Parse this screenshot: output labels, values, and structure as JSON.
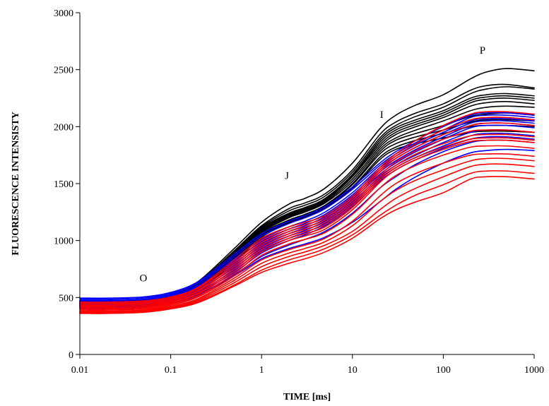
{
  "chart_data": {
    "type": "line",
    "title": "",
    "xlabel": "TIME [ms]",
    "ylabel": "FLUORESCENCE INTENSISTY",
    "x_scale": "log",
    "xlim": [
      0.01,
      1000
    ],
    "ylim": [
      0,
      3000
    ],
    "x_ticks": [
      0.01,
      0.1,
      1,
      10,
      100,
      1000
    ],
    "x_tick_labels": [
      "0.01",
      "0.1",
      "1",
      "10",
      "100",
      "1000"
    ],
    "y_ticks": [
      0,
      500,
      1000,
      1500,
      2000,
      2500,
      3000
    ],
    "y_tick_labels": [
      "0",
      "500",
      "1000",
      "1500",
      "2000",
      "2500",
      "3000"
    ],
    "grid": false,
    "legend": "none",
    "x": [
      0.01,
      0.02,
      0.05,
      0.1,
      0.2,
      0.5,
      1,
      2,
      3,
      5,
      10,
      20,
      30,
      50,
      100,
      200,
      300,
      500,
      1000
    ],
    "annotations": [
      {
        "text": "O",
        "x": 0.05,
        "y": 640
      },
      {
        "text": "J",
        "x": 1.9,
        "y": 1540
      },
      {
        "text": "I",
        "x": 21,
        "y": 2075
      },
      {
        "text": "P",
        "x": 270,
        "y": 2640
      }
    ],
    "series": [
      {
        "color": "#000000",
        "values": [
          470,
          470,
          480,
          530,
          640,
          930,
          1160,
          1320,
          1370,
          1460,
          1680,
          1980,
          2100,
          2190,
          2280,
          2420,
          2480,
          2510,
          2490
        ]
      },
      {
        "color": "#000000",
        "values": [
          465,
          465,
          475,
          520,
          630,
          910,
          1130,
          1280,
          1330,
          1410,
          1620,
          1930,
          2040,
          2120,
          2200,
          2320,
          2360,
          2370,
          2340
        ]
      },
      {
        "color": "#000000",
        "values": [
          460,
          460,
          470,
          515,
          625,
          900,
          1120,
          1260,
          1310,
          1390,
          1600,
          1900,
          2010,
          2090,
          2170,
          2290,
          2330,
          2350,
          2330
        ]
      },
      {
        "color": "#000000",
        "values": [
          455,
          455,
          465,
          510,
          615,
          890,
          1110,
          1240,
          1290,
          1370,
          1580,
          1880,
          1990,
          2060,
          2140,
          2250,
          2280,
          2290,
          2270
        ]
      },
      {
        "color": "#000000",
        "values": [
          450,
          450,
          460,
          505,
          610,
          880,
          1100,
          1230,
          1280,
          1360,
          1570,
          1860,
          1970,
          2040,
          2120,
          2230,
          2260,
          2270,
          2250
        ]
      },
      {
        "color": "#000000",
        "values": [
          445,
          445,
          455,
          500,
          600,
          870,
          1090,
          1220,
          1270,
          1350,
          1560,
          1840,
          1950,
          2020,
          2100,
          2210,
          2240,
          2250,
          2230
        ]
      },
      {
        "color": "#000000",
        "values": [
          440,
          440,
          450,
          495,
          595,
          860,
          1080,
          1210,
          1260,
          1340,
          1540,
          1820,
          1930,
          2000,
          2080,
          2180,
          2210,
          2220,
          2200
        ]
      },
      {
        "color": "#000000",
        "values": [
          435,
          435,
          445,
          490,
          590,
          850,
          1070,
          1200,
          1250,
          1330,
          1520,
          1800,
          1900,
          1970,
          2050,
          2140,
          2170,
          2180,
          2170
        ]
      },
      {
        "color": "#000000",
        "values": [
          430,
          430,
          440,
          485,
          580,
          840,
          1060,
          1180,
          1230,
          1310,
          1500,
          1780,
          1880,
          1940,
          2010,
          2090,
          2110,
          2120,
          2100
        ]
      },
      {
        "color": "#000000",
        "values": [
          425,
          425,
          435,
          480,
          575,
          830,
          1050,
          1170,
          1220,
          1300,
          1490,
          1760,
          1850,
          1910,
          1970,
          2040,
          2060,
          2060,
          2050
        ]
      },
      {
        "color": "#000000",
        "values": [
          420,
          420,
          430,
          475,
          565,
          820,
          1040,
          1160,
          1210,
          1290,
          1470,
          1730,
          1820,
          1880,
          1940,
          2000,
          2010,
          2010,
          2000
        ]
      },
      {
        "color": "#000000",
        "values": [
          415,
          415,
          425,
          470,
          560,
          810,
          1030,
          1150,
          1200,
          1280,
          1460,
          1710,
          1800,
          1850,
          1900,
          1950,
          1960,
          1960,
          1950
        ]
      },
      {
        "color": "#0000ff",
        "values": [
          495,
          495,
          505,
          545,
          640,
          880,
          1060,
          1170,
          1220,
          1300,
          1470,
          1680,
          1780,
          1880,
          2000,
          2100,
          2120,
          2120,
          2100
        ]
      },
      {
        "color": "#0000ff",
        "values": [
          485,
          485,
          495,
          535,
          630,
          860,
          1040,
          1150,
          1200,
          1280,
          1450,
          1660,
          1760,
          1860,
          1970,
          2080,
          2100,
          2100,
          2080
        ]
      },
      {
        "color": "#0000ff",
        "values": [
          475,
          475,
          485,
          525,
          615,
          840,
          1010,
          1120,
          1170,
          1250,
          1420,
          1640,
          1740,
          1840,
          1950,
          2050,
          2070,
          2070,
          2050
        ]
      },
      {
        "color": "#0000ff",
        "values": [
          465,
          465,
          475,
          515,
          600,
          820,
          990,
          1100,
          1150,
          1230,
          1400,
          1620,
          1720,
          1820,
          1930,
          2030,
          2050,
          2050,
          2030
        ]
      },
      {
        "color": "#0000ff",
        "values": [
          455,
          455,
          465,
          505,
          590,
          800,
          970,
          1080,
          1130,
          1210,
          1380,
          1600,
          1700,
          1800,
          1910,
          2010,
          2030,
          2030,
          2010
        ]
      },
      {
        "color": "#0000ff",
        "values": [
          445,
          445,
          455,
          495,
          575,
          780,
          950,
          1060,
          1110,
          1190,
          1360,
          1580,
          1680,
          1780,
          1890,
          1990,
          2010,
          2010,
          1990
        ]
      },
      {
        "color": "#0000ff",
        "values": [
          435,
          435,
          445,
          485,
          565,
          760,
          930,
          1040,
          1090,
          1170,
          1340,
          1560,
          1660,
          1750,
          1860,
          1950,
          1970,
          1970,
          1950
        ]
      },
      {
        "color": "#0000ff",
        "values": [
          425,
          425,
          435,
          475,
          550,
          740,
          910,
          1020,
          1070,
          1150,
          1320,
          1540,
          1640,
          1730,
          1830,
          1920,
          1940,
          1940,
          1920
        ]
      },
      {
        "color": "#0000ff",
        "values": [
          415,
          415,
          425,
          465,
          540,
          720,
          890,
          1000,
          1050,
          1130,
          1300,
          1520,
          1620,
          1710,
          1810,
          1890,
          1910,
          1910,
          1890
        ]
      },
      {
        "color": "#0000ff",
        "values": [
          405,
          405,
          415,
          455,
          525,
          700,
          860,
          960,
          1010,
          1080,
          1240,
          1460,
          1560,
          1670,
          1780,
          1860,
          1880,
          1880,
          1860
        ]
      },
      {
        "color": "#0000ff",
        "values": [
          400,
          400,
          410,
          450,
          520,
          690,
          840,
          930,
          970,
          1030,
          1160,
          1340,
          1450,
          1560,
          1680,
          1770,
          1790,
          1800,
          1790
        ]
      },
      {
        "color": "#ff0000",
        "values": [
          460,
          460,
          470,
          505,
          590,
          830,
          1020,
          1120,
          1160,
          1220,
          1390,
          1640,
          1760,
          1880,
          2010,
          2110,
          2130,
          2130,
          2110
        ]
      },
      {
        "color": "#ff0000",
        "values": [
          450,
          450,
          460,
          495,
          580,
          810,
          1000,
          1100,
          1140,
          1200,
          1370,
          1620,
          1740,
          1850,
          1970,
          2060,
          2080,
          2080,
          2060
        ]
      },
      {
        "color": "#ff0000",
        "values": [
          440,
          440,
          450,
          485,
          565,
          790,
          980,
          1080,
          1120,
          1180,
          1350,
          1600,
          1720,
          1820,
          1930,
          2010,
          2030,
          2030,
          2010
        ]
      },
      {
        "color": "#ff0000",
        "values": [
          430,
          430,
          440,
          475,
          555,
          770,
          960,
          1060,
          1100,
          1160,
          1330,
          1570,
          1690,
          1790,
          1890,
          1960,
          1970,
          1970,
          1950
        ]
      },
      {
        "color": "#ff0000",
        "values": [
          420,
          420,
          430,
          465,
          540,
          750,
          940,
          1040,
          1080,
          1140,
          1310,
          1550,
          1660,
          1760,
          1850,
          1920,
          1930,
          1930,
          1910
        ]
      },
      {
        "color": "#ff0000",
        "values": [
          410,
          410,
          420,
          455,
          530,
          730,
          920,
          1020,
          1060,
          1120,
          1290,
          1530,
          1640,
          1730,
          1820,
          1890,
          1900,
          1900,
          1880
        ]
      },
      {
        "color": "#ff0000",
        "values": [
          400,
          400,
          410,
          445,
          515,
          710,
          900,
          1000,
          1040,
          1100,
          1270,
          1510,
          1620,
          1710,
          1800,
          1870,
          1880,
          1880,
          1860
        ]
      },
      {
        "color": "#ff0000",
        "values": [
          390,
          390,
          400,
          435,
          505,
          690,
          870,
          970,
          1010,
          1070,
          1230,
          1460,
          1570,
          1660,
          1750,
          1820,
          1830,
          1830,
          1810
        ]
      },
      {
        "color": "#ff0000",
        "values": [
          380,
          380,
          390,
          425,
          490,
          670,
          830,
          920,
          960,
          1020,
          1170,
          1390,
          1500,
          1590,
          1680,
          1750,
          1760,
          1760,
          1740
        ]
      },
      {
        "color": "#ff0000",
        "values": [
          375,
          375,
          385,
          415,
          480,
          650,
          800,
          890,
          930,
          990,
          1130,
          1340,
          1440,
          1530,
          1620,
          1700,
          1720,
          1720,
          1700
        ]
      },
      {
        "color": "#ff0000",
        "values": [
          370,
          370,
          380,
          410,
          470,
          630,
          770,
          860,
          900,
          960,
          1080,
          1270,
          1370,
          1460,
          1560,
          1650,
          1670,
          1670,
          1650
        ]
      },
      {
        "color": "#ff0000",
        "values": [
          365,
          365,
          375,
          405,
          460,
          610,
          740,
          830,
          870,
          930,
          1050,
          1220,
          1310,
          1400,
          1490,
          1590,
          1610,
          1610,
          1590
        ]
      },
      {
        "color": "#ff0000",
        "values": [
          360,
          360,
          370,
          400,
          455,
          600,
          720,
          800,
          840,
          900,
          1020,
          1190,
          1270,
          1340,
          1420,
          1540,
          1560,
          1560,
          1540
        ]
      }
    ]
  }
}
